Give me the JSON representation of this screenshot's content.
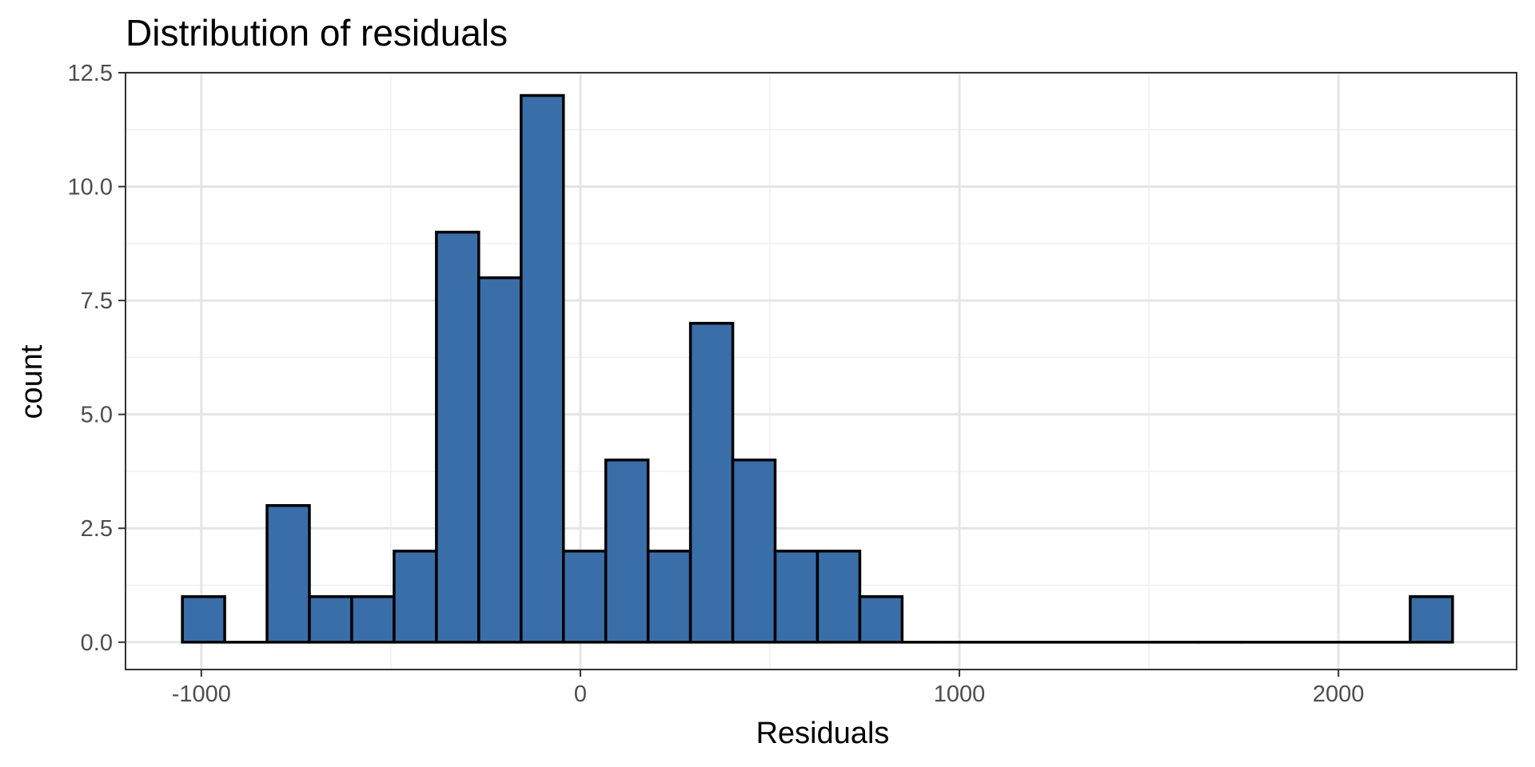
{
  "chart_data": {
    "type": "bar",
    "title": "Distribution of residuals",
    "xlabel": "Residuals",
    "ylabel": "count",
    "xlim": [
      -1200,
      2470
    ],
    "ylim": [
      -0.6,
      12.5
    ],
    "x_ticks": [
      {
        "value": -1000,
        "label": "-1000"
      },
      {
        "value": 0,
        "label": "0"
      },
      {
        "value": 1000,
        "label": "1000"
      },
      {
        "value": 2000,
        "label": "2000"
      }
    ],
    "y_ticks": [
      {
        "value": 0,
        "label": "0.0"
      },
      {
        "value": 2.5,
        "label": "2.5"
      },
      {
        "value": 5,
        "label": "5.0"
      },
      {
        "value": 7.5,
        "label": "7.5"
      },
      {
        "value": 10,
        "label": "10.0"
      },
      {
        "value": 12.5,
        "label": "12.5"
      }
    ],
    "grid": true,
    "bin_width": 111.7,
    "bins": [
      {
        "x0": -1050,
        "count": 1
      },
      {
        "x0": -938.3,
        "count": 0
      },
      {
        "x0": -826.6,
        "count": 3
      },
      {
        "x0": -714.9,
        "count": 1
      },
      {
        "x0": -603.2,
        "count": 1
      },
      {
        "x0": -491.5,
        "count": 2
      },
      {
        "x0": -379.8,
        "count": 9
      },
      {
        "x0": -268.1,
        "count": 8
      },
      {
        "x0": -156.4,
        "count": 12
      },
      {
        "x0": -44.7,
        "count": 2
      },
      {
        "x0": 67.0,
        "count": 4
      },
      {
        "x0": 178.7,
        "count": 2
      },
      {
        "x0": 290.4,
        "count": 7
      },
      {
        "x0": 402.1,
        "count": 4
      },
      {
        "x0": 513.8,
        "count": 2
      },
      {
        "x0": 625.5,
        "count": 2
      },
      {
        "x0": 737.2,
        "count": 1
      },
      {
        "x0": 848.9,
        "count": 0
      },
      {
        "x0": 960.6,
        "count": 0
      },
      {
        "x0": 1072.3,
        "count": 0
      },
      {
        "x0": 1184.0,
        "count": 0
      },
      {
        "x0": 1295.7,
        "count": 0
      },
      {
        "x0": 1407.4,
        "count": 0
      },
      {
        "x0": 1519.1,
        "count": 0
      },
      {
        "x0": 1630.8,
        "count": 0
      },
      {
        "x0": 1742.5,
        "count": 0
      },
      {
        "x0": 1854.2,
        "count": 0
      },
      {
        "x0": 1965.9,
        "count": 0
      },
      {
        "x0": 2077.6,
        "count": 0
      },
      {
        "x0": 2189.3,
        "count": 1
      }
    ],
    "colors": {
      "bar_fill": "#3a6ea8",
      "bar_stroke": "#000000",
      "grid_major": "#e5e5e5",
      "grid_minor": "#f0f0f0",
      "panel_border": "#333333",
      "tick_text": "#4d4d4d"
    }
  }
}
